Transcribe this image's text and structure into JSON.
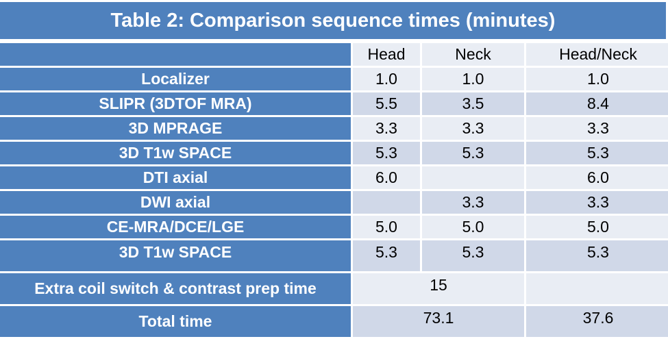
{
  "table": {
    "title": "Table 2: Comparison sequence times (minutes)",
    "columns": [
      "",
      "Head",
      "Neck",
      "Head/Neck"
    ],
    "rows": [
      {
        "label": "Localizer",
        "head": "1.0",
        "neck": "1.0",
        "headneck": "1.0"
      },
      {
        "label": "SLIPR (3DTOF MRA)",
        "head": "5.5",
        "neck": "3.5",
        "headneck": "8.4"
      },
      {
        "label": "3D MPRAGE",
        "head": "3.3",
        "neck": "3.3",
        "headneck": "3.3"
      },
      {
        "label": "3D T1w SPACE",
        "head": "5.3",
        "neck": "5.3",
        "headneck": "5.3"
      },
      {
        "label": "DTI axial",
        "head": "6.0",
        "neck": "",
        "headneck": "6.0"
      },
      {
        "label": "DWI axial",
        "head": "",
        "neck": "3.3",
        "headneck": "3.3"
      },
      {
        "label": "CE-MRA/DCE/LGE",
        "head": "5.0",
        "neck": "5.0",
        "headneck": "5.0"
      },
      {
        "label": "3D T1w SPACE",
        "head": "5.3",
        "neck": "5.3",
        "headneck": "5.3"
      }
    ],
    "extra_row": {
      "label": "Extra coil switch & contrast prep time",
      "head_neck_combined": "15",
      "headneck": ""
    },
    "total_row": {
      "label": "Total time",
      "head_neck_combined": "73.1",
      "headneck": "37.6"
    }
  },
  "colors": {
    "header_blue": "#4f81bd",
    "row_light": "#e9edf4",
    "row_dark": "#d0d8e8"
  }
}
